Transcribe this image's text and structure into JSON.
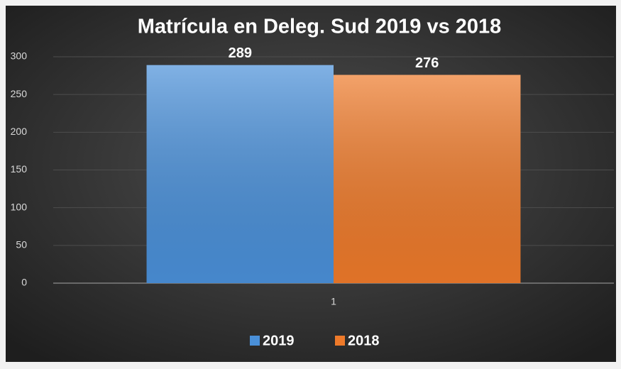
{
  "chart_data": {
    "type": "bar",
    "title": "Matrícula en Deleg. Sud 2019 vs 2018",
    "categories": [
      "1"
    ],
    "series": [
      {
        "name": "2019",
        "color": "#4a90d9",
        "values": [
          289
        ]
      },
      {
        "name": "2018",
        "color": "#ee7a2a",
        "values": [
          276
        ]
      }
    ],
    "ylim": [
      0,
      300
    ],
    "yticks": [
      0,
      50,
      100,
      150,
      200,
      250,
      300
    ],
    "grid": true,
    "legend": "bottom"
  }
}
